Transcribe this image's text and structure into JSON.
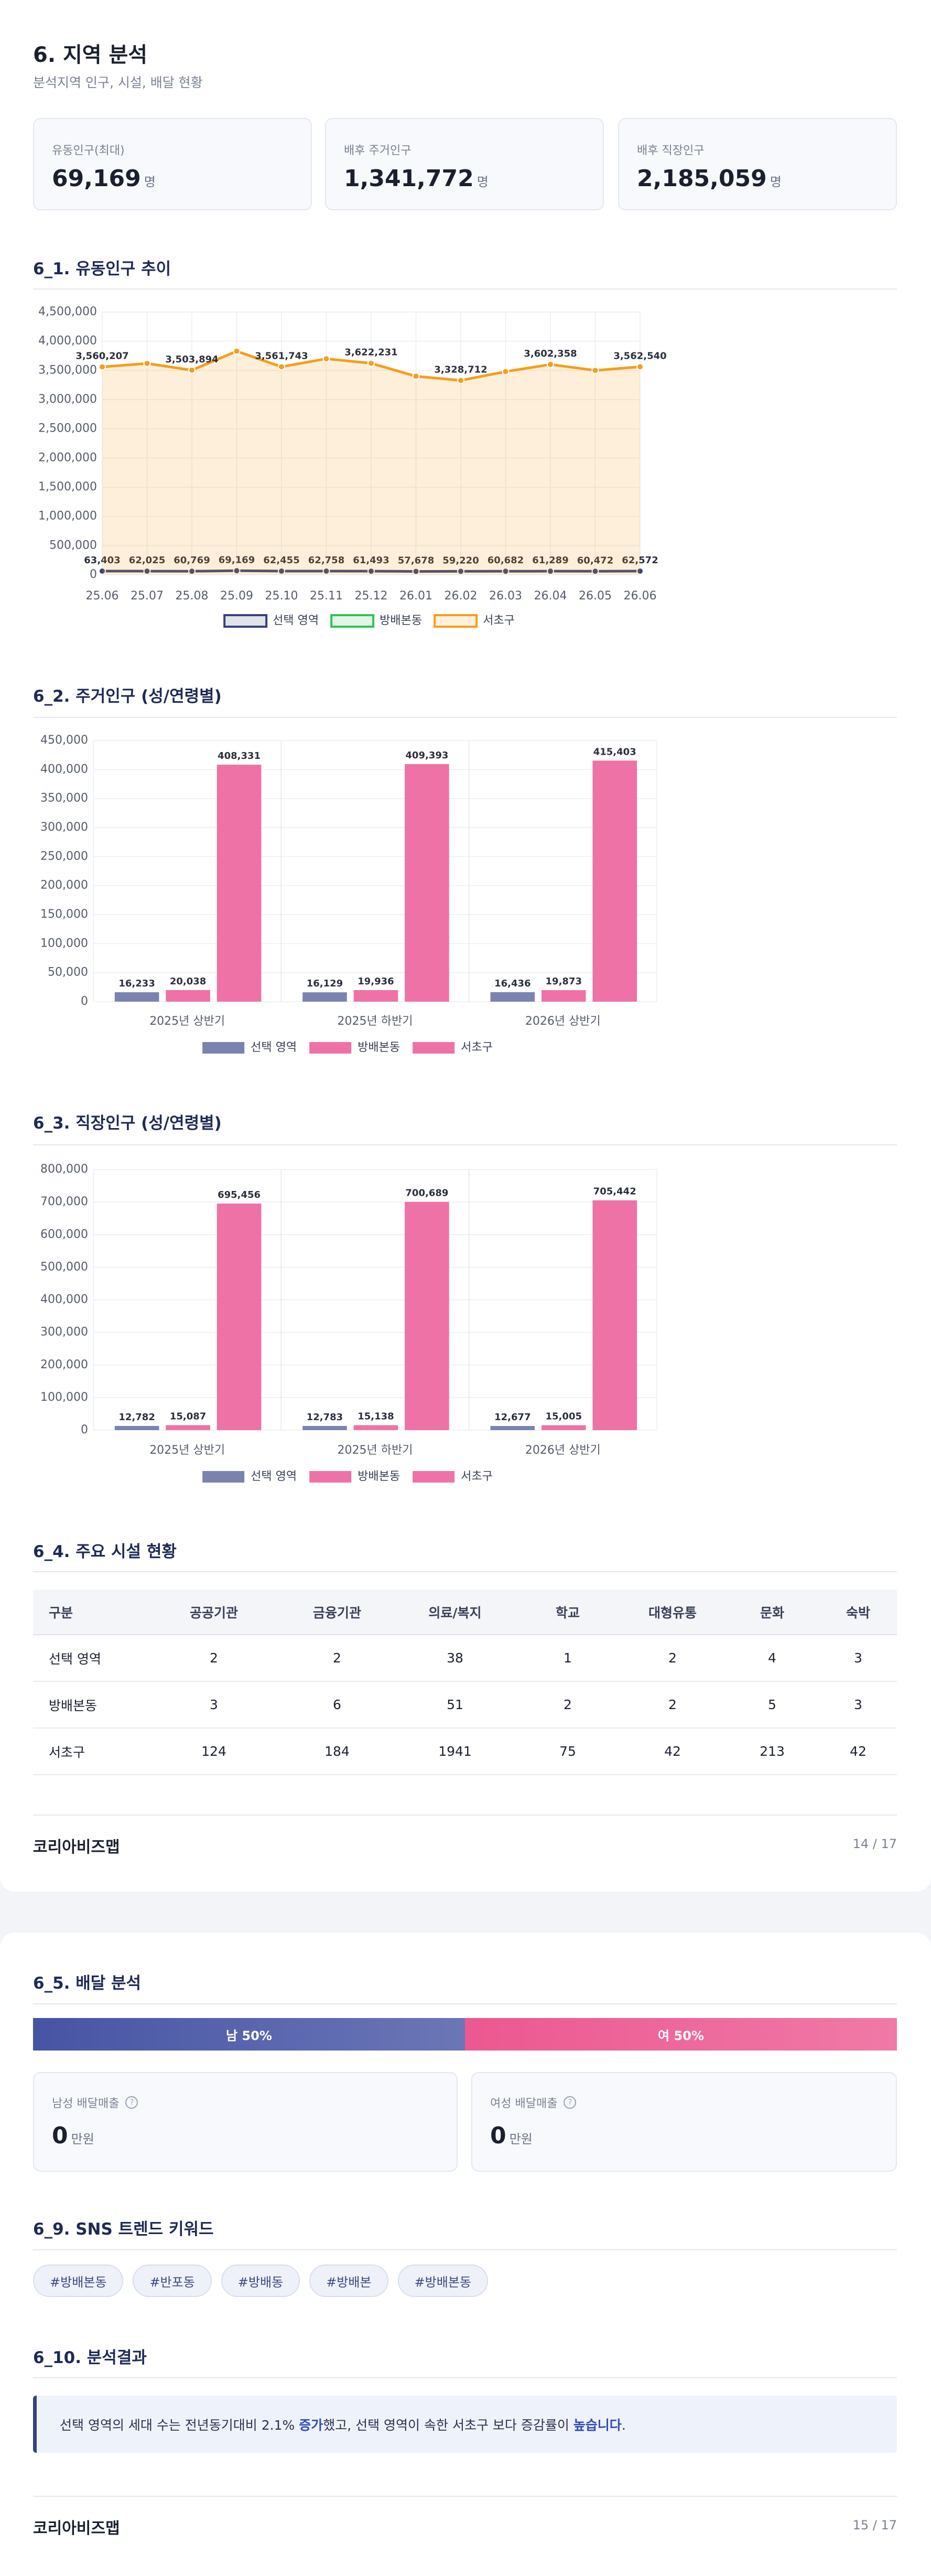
{
  "header": {
    "title": "6. 지역 분석",
    "subtitle": "분석지역 인구, 시설, 배달 현황"
  },
  "kpis": [
    {
      "label": "유동인구(최대)",
      "value": "69,169",
      "unit": "명"
    },
    {
      "label": "배후 주거인구",
      "value": "1,341,772",
      "unit": "명"
    },
    {
      "label": "배후 직장인구",
      "value": "2,185,059",
      "unit": "명"
    }
  ],
  "sections": {
    "floating": "6_1. 유동인구 추이",
    "residential": "6_2. 주거인구 (성/연령별)",
    "working": "6_3. 직장인구 (성/연령별)",
    "facilities": "6_4. 주요 시설 현황",
    "delivery": "6_5. 배달 분석",
    "sns": "6_9. SNS 트렌드 키워드",
    "result": "6_10. 분석결과"
  },
  "chart_data": [
    {
      "type": "line",
      "categories": [
        "25.06",
        "25.07",
        "25.08",
        "25.09",
        "25.10",
        "25.11",
        "25.12",
        "26.01",
        "26.02",
        "26.03",
        "26.04",
        "26.05",
        "26.06"
      ],
      "ylim": [
        0,
        4500000
      ],
      "yticks": [
        0,
        {
          "value": 500000,
          "label": "500,000"
        },
        {
          "value": 1000000,
          "label": "1,000,000"
        },
        {
          "value": 1500000,
          "label": "1,500,000"
        },
        {
          "value": 2000000,
          "label": "2,000,000"
        },
        {
          "value": 2500000,
          "label": "2,500,000"
        },
        {
          "value": 3000000,
          "label": "3,000,000"
        },
        {
          "value": 3500000,
          "label": "3,500,000"
        },
        {
          "value": 4000000,
          "label": "4,000,000"
        },
        {
          "value": 4500000,
          "label": "4,500,000"
        }
      ],
      "grid": true,
      "series": [
        {
          "name": "선택 영역",
          "color": "#34437a",
          "values": [
            63403,
            62025,
            60769,
            69169,
            62455,
            62758,
            61493,
            57678,
            59220,
            60682,
            61289,
            60472,
            62572
          ],
          "value_labels": [
            "63,403",
            "62,025",
            "60,769",
            "69,169",
            "62,455",
            "62,758",
            "61,493",
            "57,678",
            "59,220",
            "60,682",
            "61,289",
            "60,472",
            "62,572"
          ]
        },
        {
          "name": "방배본동",
          "color": "#35c159",
          "values": [
            null,
            null,
            null,
            null,
            null,
            null,
            null,
            null,
            null,
            null,
            null,
            null,
            null
          ]
        },
        {
          "name": "서초구",
          "color": "#f59e1c",
          "area": true,
          "values": [
            3560207,
            3620000,
            3503894,
            3830000,
            3561743,
            3700000,
            3622231,
            3400000,
            3328712,
            3480000,
            3602358,
            3500000,
            3562540
          ],
          "value_labels": [
            "3,560,207",
            null,
            "3,503,894",
            null,
            "3,561,743",
            null,
            "3,622,231",
            null,
            "3,328,712",
            null,
            "3,602,358",
            null,
            "3,562,540"
          ]
        }
      ]
    },
    {
      "type": "bar",
      "categories": [
        "2025년 상반기",
        "2025년 하반기",
        "2026년 상반기"
      ],
      "ylim": [
        0,
        450000
      ],
      "yticks": [
        0,
        {
          "value": 50000,
          "label": "50,000"
        },
        {
          "value": 100000,
          "label": "100,000"
        },
        {
          "value": 150000,
          "label": "150,000"
        },
        {
          "value": 200000,
          "label": "200,000"
        },
        {
          "value": 250000,
          "label": "250,000"
        },
        {
          "value": 300000,
          "label": "300,000"
        },
        {
          "value": 350000,
          "label": "350,000"
        },
        {
          "value": 400000,
          "label": "400,000"
        },
        {
          "value": 450000,
          "label": "450,000"
        }
      ],
      "grid": true,
      "series": [
        {
          "name": "선택 영역",
          "color": "#7a83b0",
          "values": [
            16233,
            16129,
            16436
          ],
          "value_labels": [
            "16,233",
            "16,129",
            "16,436"
          ]
        },
        {
          "name": "방배본동",
          "color": "#ee72a6",
          "values": [
            20038,
            19936,
            19873
          ],
          "value_labels": [
            "20,038",
            "19,936",
            "19,873"
          ]
        },
        {
          "name": "서초구",
          "color": "#ee72a6",
          "values": [
            408331,
            409393,
            415403
          ],
          "value_labels": [
            "408,331",
            "409,393",
            "415,403"
          ]
        }
      ]
    },
    {
      "type": "bar",
      "categories": [
        "2025년 상반기",
        "2025년 하반기",
        "2026년 상반기"
      ],
      "ylim": [
        0,
        800000
      ],
      "yticks": [
        0,
        {
          "value": 100000,
          "label": "100,000"
        },
        {
          "value": 200000,
          "label": "200,000"
        },
        {
          "value": 300000,
          "label": "300,000"
        },
        {
          "value": 400000,
          "label": "400,000"
        },
        {
          "value": 500000,
          "label": "500,000"
        },
        {
          "value": 600000,
          "label": "600,000"
        },
        {
          "value": 700000,
          "label": "700,000"
        },
        {
          "value": 800000,
          "label": "800,000"
        }
      ],
      "grid": true,
      "series": [
        {
          "name": "선택 영역",
          "color": "#7a83b0",
          "values": [
            12782,
            12783,
            12677
          ],
          "value_labels": [
            "12,782",
            "12,783",
            "12,677"
          ]
        },
        {
          "name": "방배본동",
          "color": "#ee72a6",
          "values": [
            15087,
            15138,
            15005
          ],
          "value_labels": [
            "15,087",
            "15,138",
            "15,005"
          ]
        },
        {
          "name": "서초구",
          "color": "#ee72a6",
          "values": [
            695456,
            700689,
            705442
          ],
          "value_labels": [
            "695,456",
            "700,689",
            "705,442"
          ]
        }
      ]
    }
  ],
  "table": {
    "columns": [
      "구분",
      "공공기관",
      "금융기관",
      "의료/복지",
      "학교",
      "대형유통",
      "문화",
      "숙박"
    ],
    "rows": [
      [
        "선택 영역",
        2,
        2,
        38,
        1,
        2,
        4,
        3
      ],
      [
        "방배본동",
        3,
        6,
        51,
        2,
        2,
        5,
        3
      ],
      [
        "서초구",
        124,
        184,
        1941,
        75,
        42,
        213,
        42
      ]
    ]
  },
  "delivery": {
    "split": [
      {
        "label": "남 50%",
        "value": 50,
        "color": "#4654a4"
      },
      {
        "label": "여 50%",
        "value": 50,
        "color": "#ec5890"
      }
    ],
    "cards": [
      {
        "label": "남성 배달매출",
        "value": 0,
        "unit": "만원"
      },
      {
        "label": "여성 배달매출",
        "value": 0,
        "unit": "만원"
      }
    ]
  },
  "sns_keywords": [
    "#방배본동",
    "#반포동",
    "#방배동",
    "#방배본",
    "#방배본동"
  ],
  "result": {
    "segments": [
      {
        "text": "선택 영역의 세대 수는 전년동기대비 2.1% ",
        "emphasis": false
      },
      {
        "text": "증가",
        "emphasis": true
      },
      {
        "text": "했고, 선택 영역이 속한 서초구 보다 증감률이 ",
        "emphasis": false
      },
      {
        "text": "높습니다",
        "emphasis": true
      },
      {
        "text": ".",
        "emphasis": false
      }
    ]
  },
  "footers": [
    {
      "brand": "코리아비즈맵",
      "page": "14 / 17"
    },
    {
      "brand": "코리아비즈맵",
      "page": "15 / 17"
    }
  ]
}
